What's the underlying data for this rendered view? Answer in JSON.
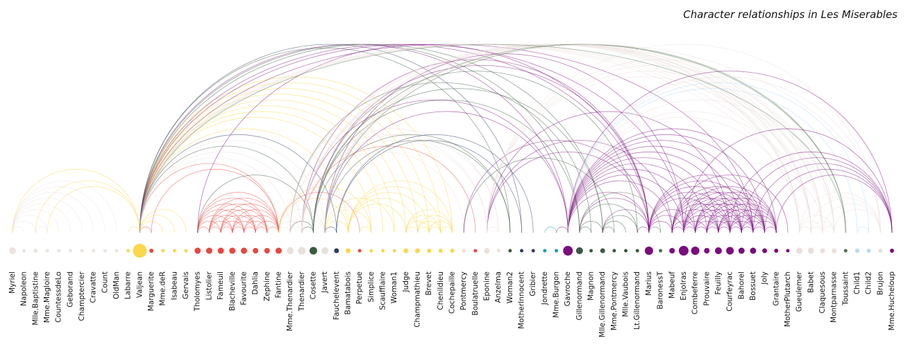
{
  "title": "Character relationships in Les Miserables",
  "groups": {
    "g0": "#ebe3df",
    "g1": "#fad74b",
    "g2": "#e8473f",
    "g3": "#e9dfdb",
    "g4": "#3b5940",
    "g5": "#7b0d7e",
    "g6": "#0aa0b8",
    "g7": "#2f3b64",
    "g8": "#b3d9f5",
    "g9": "#4a6e4c"
  },
  "nodes": [
    {
      "name": "Myriel",
      "group": "g0",
      "size": 10
    },
    {
      "name": "Napoleon",
      "group": "g0",
      "size": 5
    },
    {
      "name": "Mlle.Baptistine",
      "group": "g0",
      "size": 6
    },
    {
      "name": "Mme.Magloire",
      "group": "g0",
      "size": 5
    },
    {
      "name": "CountessdeLo",
      "group": "g0",
      "size": 5
    },
    {
      "name": "Geborand",
      "group": "g0",
      "size": 5
    },
    {
      "name": "Champtercier",
      "group": "g0",
      "size": 5
    },
    {
      "name": "Cravatte",
      "group": "g0",
      "size": 5
    },
    {
      "name": "Count",
      "group": "g0",
      "size": 5
    },
    {
      "name": "OldMan",
      "group": "g0",
      "size": 5
    },
    {
      "name": "Labarre",
      "group": "g1",
      "size": 5
    },
    {
      "name": "Valjean",
      "group": "g1",
      "size": 20
    },
    {
      "name": "Marguerite",
      "group": "g2",
      "size": 6
    },
    {
      "name": "Mme.deR",
      "group": "g1",
      "size": 5
    },
    {
      "name": "Isabeau",
      "group": "g1",
      "size": 5
    },
    {
      "name": "Gervais",
      "group": "g1",
      "size": 5
    },
    {
      "name": "Tholomyes",
      "group": "g2",
      "size": 9
    },
    {
      "name": "Listolier",
      "group": "g2",
      "size": 9
    },
    {
      "name": "Fameuil",
      "group": "g2",
      "size": 9
    },
    {
      "name": "Blacheville",
      "group": "g2",
      "size": 9
    },
    {
      "name": "Favourite",
      "group": "g2",
      "size": 9
    },
    {
      "name": "Dahlia",
      "group": "g2",
      "size": 8
    },
    {
      "name": "Zephine",
      "group": "g2",
      "size": 8
    },
    {
      "name": "Fantine",
      "group": "g2",
      "size": 9
    },
    {
      "name": "Mme.Thenardier",
      "group": "g3",
      "size": 10
    },
    {
      "name": "Thenardier",
      "group": "g3",
      "size": 11
    },
    {
      "name": "Cosette",
      "group": "g4",
      "size": 11
    },
    {
      "name": "Javert",
      "group": "g3",
      "size": 10
    },
    {
      "name": "Fauchelevent",
      "group": "g7",
      "size": 7
    },
    {
      "name": "Bamatabois",
      "group": "g1",
      "size": 7
    },
    {
      "name": "Perpetue",
      "group": "g2",
      "size": 5
    },
    {
      "name": "Simplice",
      "group": "g1",
      "size": 5
    },
    {
      "name": "Scaufflaire",
      "group": "g1",
      "size": 5
    },
    {
      "name": "Woman1",
      "group": "g1",
      "size": 5
    },
    {
      "name": "Judge",
      "group": "g1",
      "size": 7
    },
    {
      "name": "Champmathieu",
      "group": "g1",
      "size": 7
    },
    {
      "name": "Brevet",
      "group": "g1",
      "size": 6
    },
    {
      "name": "Chenildieu",
      "group": "g1",
      "size": 6
    },
    {
      "name": "Cochepaille",
      "group": "g1",
      "size": 6
    },
    {
      "name": "Pontmercy",
      "group": "g0",
      "size": 6
    },
    {
      "name": "Boulatruelle",
      "group": "g2",
      "size": 5
    },
    {
      "name": "Eponine",
      "group": "g3",
      "size": 8
    },
    {
      "name": "Anzelma",
      "group": "g3",
      "size": 5
    },
    {
      "name": "Woman2",
      "group": "g4",
      "size": 5
    },
    {
      "name": "MotherInnocent",
      "group": "g7",
      "size": 5
    },
    {
      "name": "Gribier",
      "group": "g7",
      "size": 5
    },
    {
      "name": "Jondrette",
      "group": "g6",
      "size": 5
    },
    {
      "name": "Mme.Burgon",
      "group": "g6",
      "size": 5
    },
    {
      "name": "Gavroche",
      "group": "g5",
      "size": 14
    },
    {
      "name": "Gillenormand",
      "group": "g4",
      "size": 10
    },
    {
      "name": "Magnon",
      "group": "g4",
      "size": 5
    },
    {
      "name": "Mlle.Gillenormand",
      "group": "g4",
      "size": 7
    },
    {
      "name": "Mme.Pontmercy",
      "group": "g4",
      "size": 5
    },
    {
      "name": "Mlle.Vaubois",
      "group": "g4",
      "size": 5
    },
    {
      "name": "Lt.Gillenormand",
      "group": "g4",
      "size": 5
    },
    {
      "name": "Marius",
      "group": "g5",
      "size": 12
    },
    {
      "name": "BaronessT",
      "group": "g9",
      "size": 5
    },
    {
      "name": "Mabeuf",
      "group": "g5",
      "size": 8
    },
    {
      "name": "Enjolras",
      "group": "g5",
      "size": 14
    },
    {
      "name": "Combeferre",
      "group": "g5",
      "size": 12
    },
    {
      "name": "Prouvaire",
      "group": "g5",
      "size": 8
    },
    {
      "name": "Feuilly",
      "group": "g5",
      "size": 10
    },
    {
      "name": "Courfeyrac",
      "group": "g5",
      "size": 11
    },
    {
      "name": "Bahorel",
      "group": "g5",
      "size": 9
    },
    {
      "name": "Bossuet",
      "group": "g5",
      "size": 9
    },
    {
      "name": "Joly",
      "group": "g5",
      "size": 7
    },
    {
      "name": "Grantaire",
      "group": "g5",
      "size": 6
    },
    {
      "name": "MotherPlutarch",
      "group": "g5",
      "size": 5
    },
    {
      "name": "Gueulemer",
      "group": "g3",
      "size": 9
    },
    {
      "name": "Babet",
      "group": "g3",
      "size": 9
    },
    {
      "name": "Claquesous",
      "group": "g3",
      "size": 7
    },
    {
      "name": "Montparnasse",
      "group": "g3",
      "size": 7
    },
    {
      "name": "Toussaint",
      "group": "g9",
      "size": 5
    },
    {
      "name": "Child1",
      "group": "g8",
      "size": 6
    },
    {
      "name": "Child2",
      "group": "g8",
      "size": 6
    },
    {
      "name": "Brujon",
      "group": "g3",
      "size": 6
    },
    {
      "name": "Mme.Hucheloup",
      "group": "g5",
      "size": 6
    }
  ],
  "links": [
    [
      1,
      0
    ],
    [
      2,
      0
    ],
    [
      3,
      0
    ],
    [
      3,
      2
    ],
    [
      4,
      0
    ],
    [
      5,
      0
    ],
    [
      6,
      0
    ],
    [
      7,
      0
    ],
    [
      8,
      0
    ],
    [
      9,
      0
    ],
    [
      11,
      10
    ],
    [
      11,
      3
    ],
    [
      11,
      2
    ],
    [
      11,
      0
    ],
    [
      12,
      11
    ],
    [
      13,
      11
    ],
    [
      14,
      11
    ],
    [
      15,
      11
    ],
    [
      17,
      16
    ],
    [
      18,
      16
    ],
    [
      18,
      17
    ],
    [
      19,
      16
    ],
    [
      19,
      17
    ],
    [
      19,
      18
    ],
    [
      20,
      16
    ],
    [
      20,
      17
    ],
    [
      20,
      18
    ],
    [
      20,
      19
    ],
    [
      21,
      16
    ],
    [
      21,
      17
    ],
    [
      21,
      18
    ],
    [
      21,
      19
    ],
    [
      21,
      20
    ],
    [
      22,
      16
    ],
    [
      22,
      17
    ],
    [
      22,
      18
    ],
    [
      22,
      19
    ],
    [
      22,
      20
    ],
    [
      22,
      21
    ],
    [
      23,
      16
    ],
    [
      23,
      17
    ],
    [
      23,
      18
    ],
    [
      23,
      19
    ],
    [
      23,
      20
    ],
    [
      23,
      21
    ],
    [
      23,
      22
    ],
    [
      23,
      12
    ],
    [
      23,
      11
    ],
    [
      24,
      23
    ],
    [
      24,
      11
    ],
    [
      25,
      24
    ],
    [
      25,
      23
    ],
    [
      25,
      11
    ],
    [
      26,
      24
    ],
    [
      26,
      11
    ],
    [
      26,
      16
    ],
    [
      26,
      25
    ],
    [
      27,
      11
    ],
    [
      27,
      23
    ],
    [
      27,
      25
    ],
    [
      27,
      24
    ],
    [
      27,
      26
    ],
    [
      28,
      11
    ],
    [
      28,
      27
    ],
    [
      29,
      23
    ],
    [
      29,
      27
    ],
    [
      29,
      11
    ],
    [
      30,
      23
    ],
    [
      31,
      30
    ],
    [
      31,
      11
    ],
    [
      31,
      23
    ],
    [
      31,
      27
    ],
    [
      32,
      11
    ],
    [
      33,
      11
    ],
    [
      33,
      27
    ],
    [
      34,
      11
    ],
    [
      34,
      29
    ],
    [
      35,
      11
    ],
    [
      35,
      34
    ],
    [
      35,
      29
    ],
    [
      36,
      34
    ],
    [
      36,
      35
    ],
    [
      36,
      11
    ],
    [
      36,
      29
    ],
    [
      37,
      34
    ],
    [
      37,
      35
    ],
    [
      37,
      36
    ],
    [
      37,
      11
    ],
    [
      37,
      29
    ],
    [
      38,
      34
    ],
    [
      38,
      35
    ],
    [
      38,
      36
    ],
    [
      38,
      37
    ],
    [
      38,
      11
    ],
    [
      38,
      29
    ],
    [
      39,
      25
    ],
    [
      40,
      25
    ],
    [
      41,
      24
    ],
    [
      41,
      25
    ],
    [
      42,
      41
    ],
    [
      42,
      25
    ],
    [
      42,
      24
    ],
    [
      43,
      11
    ],
    [
      43,
      26
    ],
    [
      43,
      27
    ],
    [
      44,
      28
    ],
    [
      44,
      11
    ],
    [
      45,
      28
    ],
    [
      47,
      46
    ],
    [
      48,
      47
    ],
    [
      48,
      25
    ],
    [
      48,
      27
    ],
    [
      48,
      11
    ],
    [
      49,
      26
    ],
    [
      49,
      11
    ],
    [
      50,
      49
    ],
    [
      50,
      24
    ],
    [
      51,
      49
    ],
    [
      51,
      26
    ],
    [
      51,
      11
    ],
    [
      52,
      51
    ],
    [
      52,
      39
    ],
    [
      53,
      51
    ],
    [
      54,
      51
    ],
    [
      54,
      49
    ],
    [
      54,
      26
    ],
    [
      55,
      51
    ],
    [
      55,
      49
    ],
    [
      55,
      39
    ],
    [
      55,
      54
    ],
    [
      55,
      26
    ],
    [
      55,
      11
    ],
    [
      55,
      16
    ],
    [
      55,
      25
    ],
    [
      55,
      41
    ],
    [
      55,
      48
    ],
    [
      56,
      49
    ],
    [
      56,
      55
    ],
    [
      57,
      55
    ],
    [
      57,
      41
    ],
    [
      57,
      48
    ],
    [
      58,
      55
    ],
    [
      58,
      48
    ],
    [
      58,
      27
    ],
    [
      58,
      57
    ],
    [
      58,
      11
    ],
    [
      59,
      58
    ],
    [
      59,
      55
    ],
    [
      59,
      48
    ],
    [
      59,
      57
    ],
    [
      60,
      48
    ],
    [
      60,
      58
    ],
    [
      60,
      59
    ],
    [
      61,
      48
    ],
    [
      61,
      58
    ],
    [
      61,
      60
    ],
    [
      61,
      59
    ],
    [
      61,
      57
    ],
    [
      61,
      55
    ],
    [
      62,
      55
    ],
    [
      62,
      58
    ],
    [
      62,
      59
    ],
    [
      62,
      48
    ],
    [
      62,
      57
    ],
    [
      62,
      41
    ],
    [
      62,
      61
    ],
    [
      62,
      60
    ],
    [
      63,
      59
    ],
    [
      63,
      48
    ],
    [
      63,
      62
    ],
    [
      63,
      57
    ],
    [
      63,
      58
    ],
    [
      63,
      61
    ],
    [
      63,
      60
    ],
    [
      63,
      55
    ],
    [
      64,
      55
    ],
    [
      64,
      62
    ],
    [
      64,
      48
    ],
    [
      64,
      63
    ],
    [
      64,
      58
    ],
    [
      64,
      61
    ],
    [
      64,
      60
    ],
    [
      64,
      59
    ],
    [
      64,
      57
    ],
    [
      64,
      11
    ],
    [
      65,
      63
    ],
    [
      65,
      64
    ],
    [
      65,
      48
    ],
    [
      65,
      62
    ],
    [
      65,
      58
    ],
    [
      65,
      61
    ],
    [
      65,
      60
    ],
    [
      65,
      59
    ],
    [
      65,
      57
    ],
    [
      65,
      55
    ],
    [
      66,
      64
    ],
    [
      66,
      58
    ],
    [
      66,
      59
    ],
    [
      66,
      62
    ],
    [
      66,
      65
    ],
    [
      66,
      48
    ],
    [
      66,
      63
    ],
    [
      66,
      61
    ],
    [
      66,
      60
    ],
    [
      67,
      57
    ],
    [
      68,
      25
    ],
    [
      68,
      11
    ],
    [
      68,
      24
    ],
    [
      68,
      27
    ],
    [
      68,
      48
    ],
    [
      68,
      41
    ],
    [
      69,
      25
    ],
    [
      69,
      68
    ],
    [
      69,
      11
    ],
    [
      69,
      24
    ],
    [
      69,
      27
    ],
    [
      69,
      48
    ],
    [
      69,
      41
    ],
    [
      70,
      25
    ],
    [
      70,
      69
    ],
    [
      70,
      68
    ],
    [
      70,
      11
    ],
    [
      70,
      24
    ],
    [
      70,
      27
    ],
    [
      70,
      41
    ],
    [
      70,
      58
    ],
    [
      71,
      27
    ],
    [
      71,
      69
    ],
    [
      71,
      68
    ],
    [
      71,
      70
    ],
    [
      71,
      11
    ],
    [
      71,
      48
    ],
    [
      71,
      41
    ],
    [
      71,
      25
    ],
    [
      72,
      26
    ],
    [
      72,
      27
    ],
    [
      72,
      11
    ],
    [
      73,
      48
    ],
    [
      74,
      48
    ],
    [
      74,
      73
    ],
    [
      75,
      69
    ],
    [
      75,
      68
    ],
    [
      75,
      25
    ],
    [
      75,
      48
    ],
    [
      75,
      41
    ],
    [
      75,
      70
    ],
    [
      75,
      71
    ],
    [
      76,
      64
    ],
    [
      76,
      65
    ],
    [
      76,
      66
    ],
    [
      76,
      63
    ],
    [
      76,
      62
    ],
    [
      76,
      48
    ],
    [
      76,
      58
    ]
  ]
}
